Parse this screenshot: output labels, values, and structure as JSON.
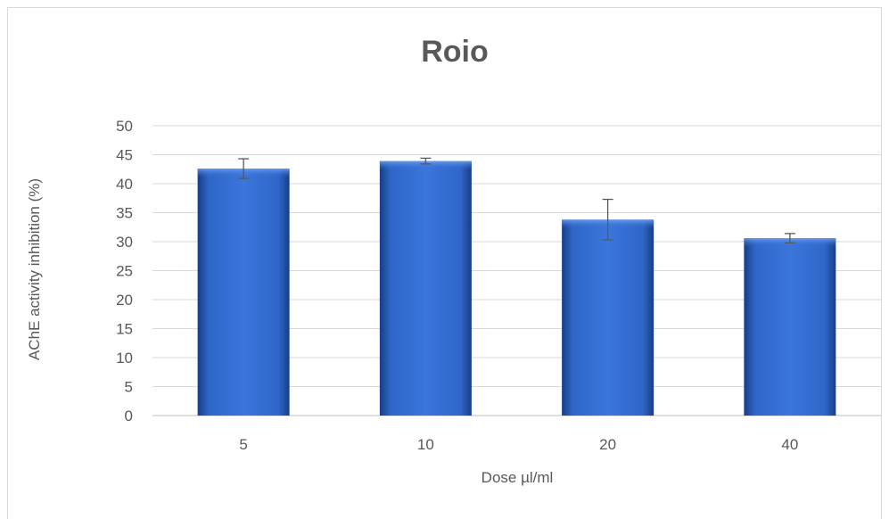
{
  "chart_data": {
    "type": "bar",
    "title": "Roio",
    "xlabel": "Dose µl/ml",
    "ylabel": "AChE activity inhibition (%)",
    "categories": [
      "5",
      "10",
      "20",
      "40"
    ],
    "values": [
      42.6,
      43.9,
      33.8,
      30.6
    ],
    "error": [
      1.7,
      0.5,
      3.5,
      0.8
    ],
    "ylim": [
      0,
      50
    ],
    "yticks": [
      "0",
      "5",
      "10",
      "15",
      "20",
      "25",
      "30",
      "35",
      "40",
      "45",
      "50"
    ],
    "grid": true,
    "legend": "none",
    "bar_color": "#2f66c8",
    "bar_color_light": "#4b86e8",
    "bar_color_dark": "#173e86"
  }
}
